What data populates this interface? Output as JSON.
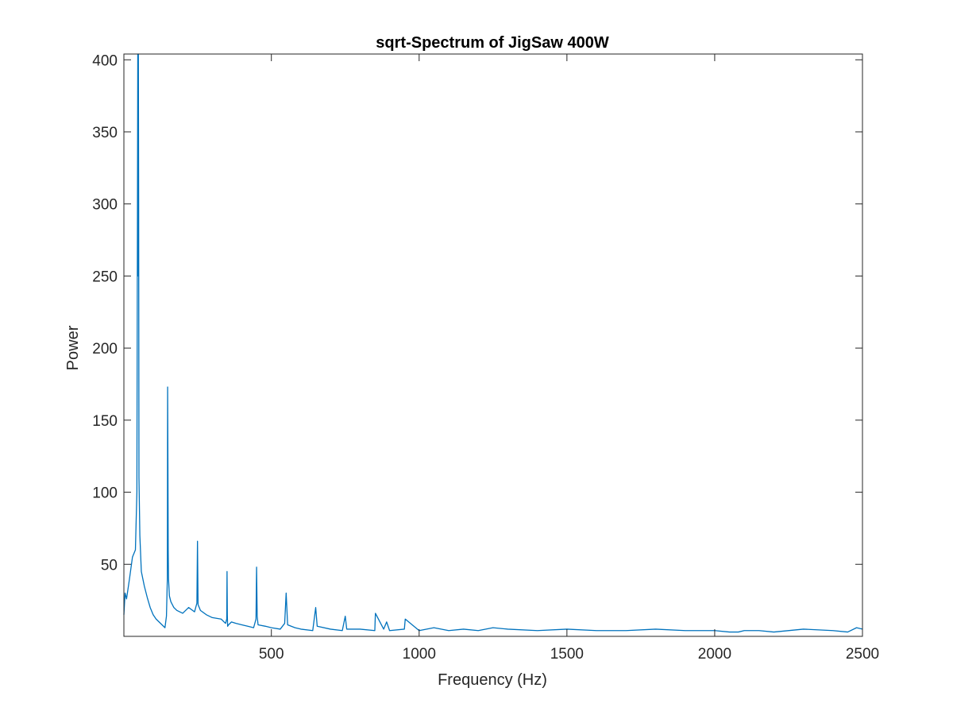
{
  "chart_data": {
    "type": "line",
    "title": "sqrt-Spectrum of JigSaw 400W",
    "xlabel": "Frequency (Hz)",
    "ylabel": "Power",
    "xlim": [
      1,
      2500
    ],
    "ylim": [
      0,
      404
    ],
    "x_ticks": [
      500,
      1000,
      1500,
      2000,
      2500
    ],
    "x_tick_labels": [
      "500",
      "1000",
      "1500",
      "2000",
      "2500"
    ],
    "y_ticks": [
      50,
      100,
      150,
      200,
      250,
      300,
      350,
      400
    ],
    "y_tick_labels": [
      "50",
      "100",
      "150",
      "200",
      "250",
      "300",
      "350",
      "400"
    ],
    "grid": false,
    "legend": "none",
    "line_color": "#0072BD",
    "series": [
      {
        "x": [
          1,
          5,
          10,
          20,
          30,
          40,
          45,
          48,
          49,
          50,
          51,
          52,
          55,
          60,
          70,
          80,
          90,
          100,
          110,
          120,
          130,
          140,
          145,
          148,
          149,
          150,
          151,
          152,
          155,
          160,
          170,
          180,
          200,
          220,
          240,
          248,
          250,
          252,
          260,
          280,
          300,
          330,
          345,
          349,
          350,
          351,
          352,
          355,
          365,
          380,
          400,
          420,
          440,
          448,
          450,
          452,
          455,
          480,
          500,
          530,
          545,
          550,
          555,
          580,
          600,
          640,
          650,
          655,
          700,
          740,
          750,
          755,
          800,
          850,
          852,
          880,
          890,
          900,
          950,
          953,
          1000,
          1050,
          1100,
          1150,
          1200,
          1250,
          1300,
          1400,
          1500,
          1600,
          1700,
          1800,
          1900,
          2000,
          2050,
          2080,
          2100,
          2150,
          2200,
          2300,
          2400,
          2450,
          2480,
          2500
        ],
        "y": [
          15,
          30,
          26,
          40,
          55,
          60,
          100,
          404,
          250,
          405,
          300,
          110,
          70,
          45,
          35,
          27,
          20,
          15,
          12,
          10,
          8,
          6,
          14,
          40,
          173,
          120,
          60,
          40,
          28,
          24,
          20,
          18,
          16,
          20,
          17,
          23,
          66,
          22,
          18,
          15,
          13,
          12,
          9,
          12,
          45,
          15,
          7,
          8,
          10,
          9,
          8,
          7,
          6,
          12,
          48,
          14,
          8,
          7,
          6,
          5,
          9,
          30,
          8,
          6,
          5,
          4,
          20,
          7,
          5,
          4,
          14,
          5,
          5,
          4,
          16,
          5,
          10,
          4,
          5,
          12,
          4,
          6,
          4,
          5,
          4,
          6,
          5,
          4,
          5,
          4,
          4,
          5,
          4,
          4,
          3,
          3,
          4,
          4,
          3,
          5,
          4,
          3,
          6,
          5
        ]
      }
    ]
  }
}
